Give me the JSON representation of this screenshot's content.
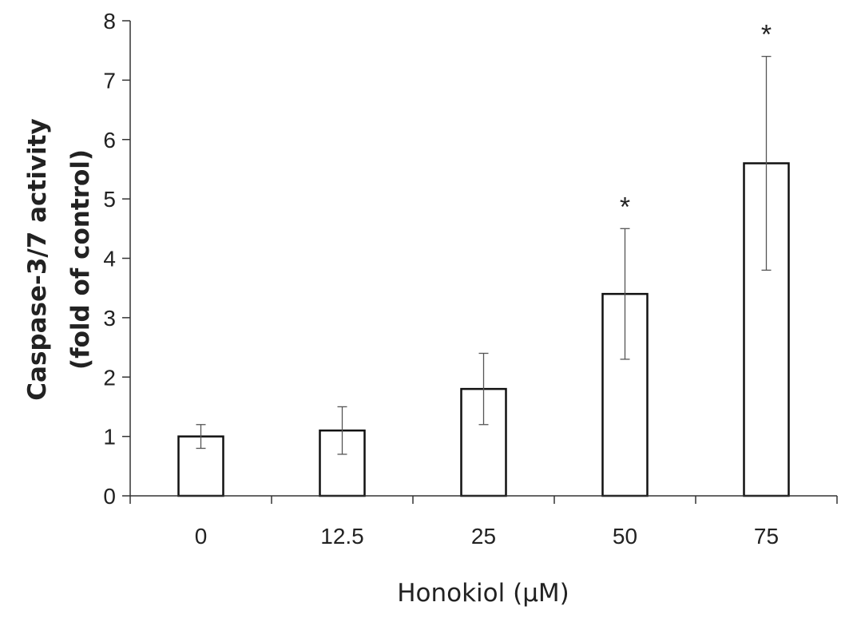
{
  "chart_data": {
    "type": "bar",
    "categories": [
      "0",
      "12.5",
      "25",
      "50",
      "75"
    ],
    "values": [
      1.0,
      1.1,
      1.8,
      3.4,
      5.6
    ],
    "error_low": [
      0.8,
      0.7,
      1.2,
      2.3,
      3.8
    ],
    "error_high": [
      1.2,
      1.5,
      2.4,
      4.5,
      7.4
    ],
    "annotations": [
      "",
      "",
      "",
      "*",
      "*"
    ],
    "xlabel": "Honokiol (μM)",
    "ylabel": [
      "Caspase-3/7 activity",
      "(fold of control)"
    ],
    "ylim": [
      0,
      8
    ],
    "yticks": [
      "0",
      "1",
      "2",
      "3",
      "4",
      "5",
      "6",
      "7",
      "8"
    ],
    "grid": false,
    "legend": "none",
    "colors": {
      "bar_fill": "#ffffff",
      "bar_stroke": "#111111",
      "axis": "#333333",
      "error_bar": "#555555"
    }
  }
}
